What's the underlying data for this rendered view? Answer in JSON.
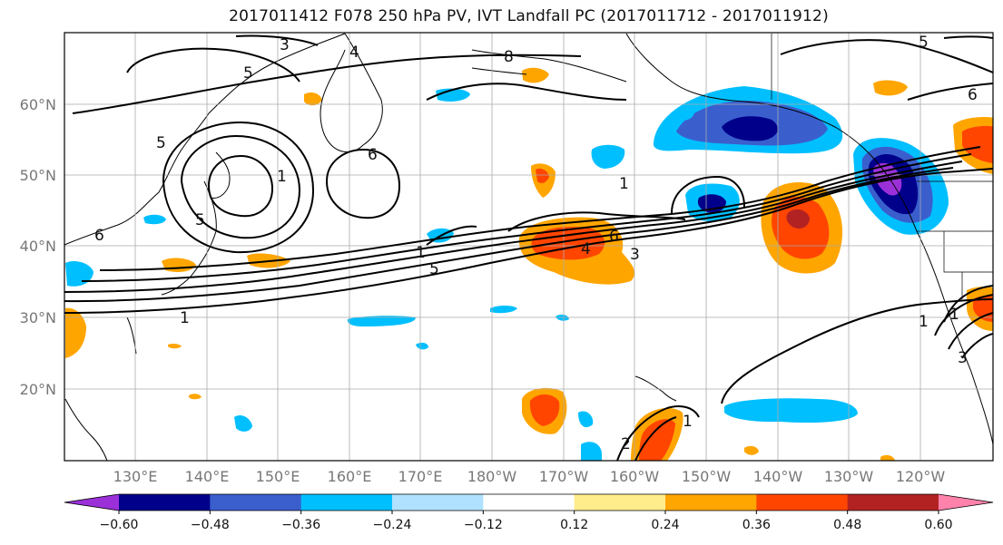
{
  "title": "2017011412 F078 250 hPa PV, IVT Landfall PC (2017011712 - 2017011912)",
  "lat_labels": [
    "60°N",
    "50°N",
    "40°N",
    "30°N",
    "20°N"
  ],
  "lon_labels": [
    "130°E",
    "140°E",
    "150°E",
    "160°E",
    "170°E",
    "180°W",
    "170°W",
    "160°W",
    "150°W",
    "140°W",
    "130°W",
    "120°W"
  ],
  "contour_labels": [
    "3",
    "5",
    "4",
    "8",
    "5",
    "6",
    "5",
    "1",
    "6",
    "1",
    "1",
    "4",
    "6",
    "3",
    "5",
    "1",
    "1",
    "2",
    "1",
    "1",
    "3",
    "5",
    "6"
  ],
  "colorbar": {
    "tick_labels": [
      "−0.60",
      "−0.48",
      "−0.36",
      "−0.24",
      "−0.12",
      "0.12",
      "0.24",
      "0.36",
      "0.48",
      "0.60"
    ],
    "colors": [
      "#9b30d9",
      "#00008b",
      "#3a5fcd",
      "#00bfff",
      "#b0e2ff",
      "#ffffff",
      "#ffec8b",
      "#ffa500",
      "#ff4500",
      "#b22222",
      "#ff82ab"
    ]
  }
}
